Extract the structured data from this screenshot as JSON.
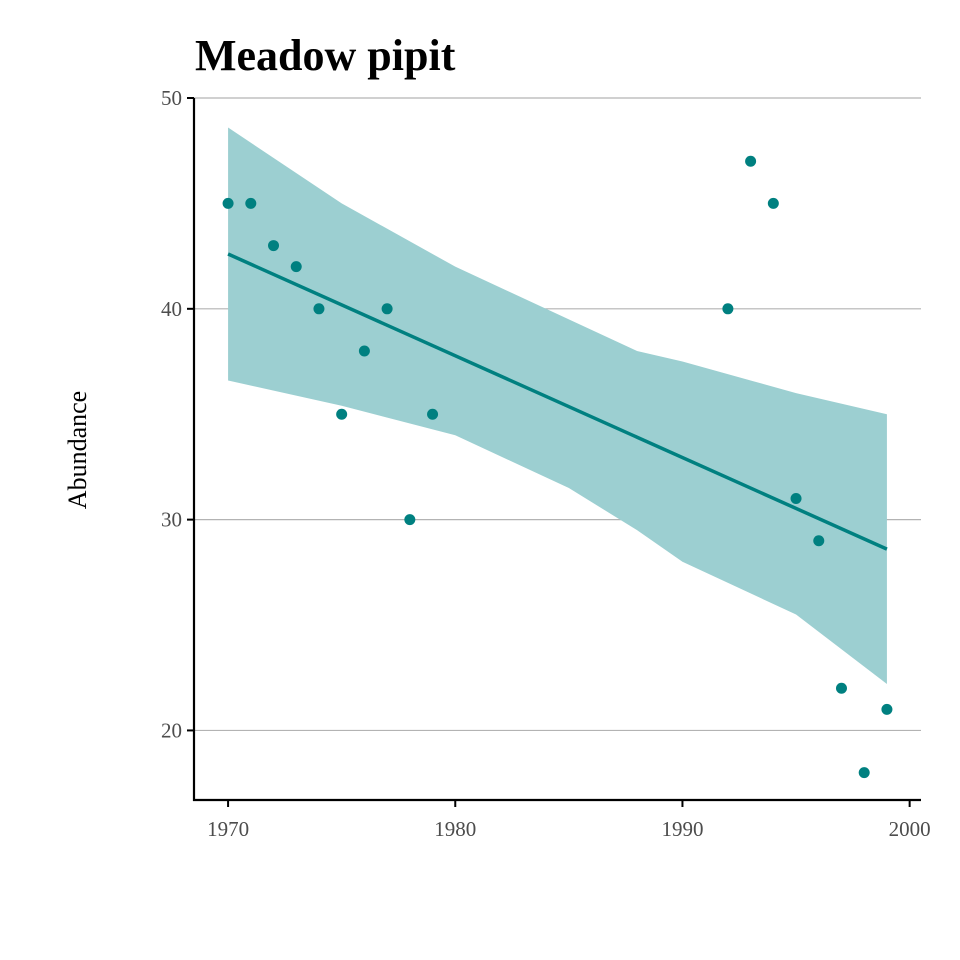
{
  "chart_data": {
    "type": "scatter",
    "title": "Meadow pipit",
    "xlabel": "",
    "ylabel": "Abundance",
    "xlim": [
      1968.5,
      2000.5
    ],
    "ylim": [
      16.7,
      50
    ],
    "x_ticks": [
      1970,
      1980,
      1990,
      2000
    ],
    "y_ticks": [
      20,
      30,
      40,
      50
    ],
    "grid": "horizontal",
    "colors": {
      "point": "#008080",
      "line": "#008080",
      "band": "#9ccfd1",
      "grid": "#b3b3b3",
      "axis": "#000000",
      "tick_label": "#4d4d4d"
    },
    "series": [
      {
        "x": [
          1970,
          1971,
          1972,
          1973,
          1974,
          1975,
          1976,
          1977,
          1978,
          1979,
          1992,
          1993,
          1994,
          1995,
          1996,
          1997,
          1998,
          1999
        ],
        "values": [
          45,
          45,
          43,
          42,
          40,
          35,
          38,
          40,
          30,
          35,
          40,
          47,
          45,
          31,
          29,
          22,
          18,
          21
        ]
      }
    ],
    "trend": {
      "x": [
        1970,
        1999
      ],
      "y": [
        42.6,
        28.6
      ]
    },
    "confidence_band": {
      "x": [
        1970,
        1975,
        1980,
        1985,
        1988,
        1990,
        1995,
        1999
      ],
      "upper": [
        48.6,
        45.0,
        42.0,
        39.5,
        38.0,
        37.5,
        36.0,
        35.0
      ],
      "lower": [
        36.6,
        35.4,
        34.0,
        31.5,
        29.5,
        28.0,
        25.5,
        22.2
      ]
    }
  }
}
